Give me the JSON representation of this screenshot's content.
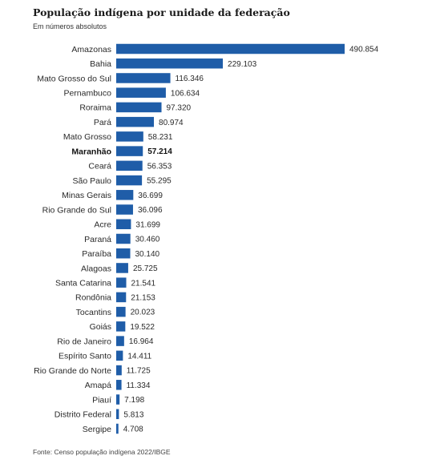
{
  "title": "População indígena por unidade da federação",
  "subtitle": "Em números absolutos",
  "source": "Fonte: Censo população indígena 2022/IBGE",
  "colors": {
    "bar": "#1f5da8",
    "text": "#2a2a2a"
  },
  "chart_data": {
    "type": "bar",
    "orientation": "horizontal",
    "title": "População indígena por unidade da federação",
    "subtitle": "Em números absolutos",
    "highlight": "Maranhão",
    "grid": false,
    "categories": [
      "Amazonas",
      "Bahia",
      "Mato Grosso do Sul",
      "Pernambuco",
      "Roraima",
      "Pará",
      "Mato Grosso",
      "Maranhão",
      "Ceará",
      "São Paulo",
      "Minas Gerais",
      "Rio Grande do Sul",
      "Acre",
      "Paraná",
      "Paraíba",
      "Alagoas",
      "Santa Catarina",
      "Rondônia",
      "Tocantins",
      "Goiás",
      "Rio de Janeiro",
      "Espírito Santo",
      "Rio Grande do Norte",
      "Amapá",
      "Piauí",
      "Distrito Federal",
      "Sergipe"
    ],
    "values": [
      490854,
      229103,
      116346,
      106634,
      97320,
      80974,
      58231,
      57214,
      56353,
      55295,
      36699,
      36096,
      31699,
      30460,
      30140,
      25725,
      21541,
      21153,
      20023,
      19522,
      16964,
      14411,
      11725,
      11334,
      7198,
      5813,
      4708
    ],
    "value_labels": [
      "490.854",
      "229.103",
      "116.346",
      "106.634",
      "97.320",
      "80.974",
      "58.231",
      "57.214",
      "56.353",
      "55.295",
      "36.699",
      "36.096",
      "31.699",
      "30.460",
      "30.140",
      "25.725",
      "21.541",
      "21.153",
      "20.023",
      "19.522",
      "16.964",
      "14.411",
      "11.725",
      "11.334",
      "7.198",
      "5.813",
      "4.708"
    ]
  }
}
